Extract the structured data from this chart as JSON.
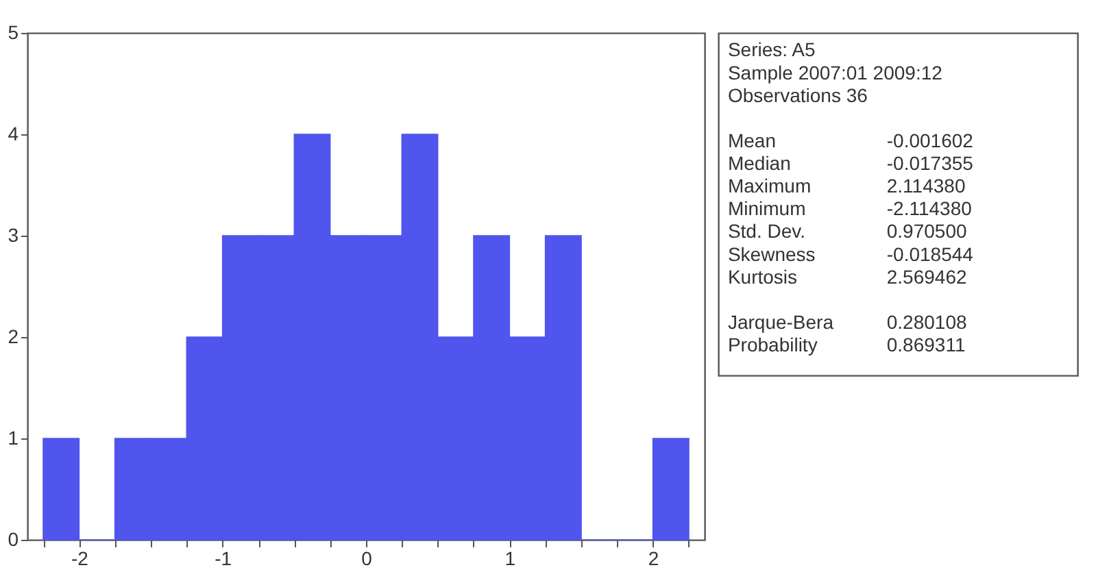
{
  "chart_data": {
    "type": "histogram",
    "color": "#5055ee",
    "bins": [
      -2.25,
      -2,
      -1.75,
      -1.5,
      -1.25,
      -1,
      -0.75,
      -0.5,
      -0.25,
      0,
      0.25,
      0.5,
      0.75,
      1,
      1.25,
      1.5,
      1.75,
      2,
      2.25
    ],
    "values": [
      1,
      0,
      1,
      1,
      2,
      3,
      3,
      4,
      3,
      3,
      4,
      2,
      3,
      2,
      3,
      0,
      0,
      1
    ],
    "xlim": [
      -2.36,
      2.36
    ],
    "xticks": [
      {
        "value": -2.25,
        "label": null
      },
      -2,
      {
        "value": -1.75,
        "label": null
      },
      {
        "value": -1.5,
        "label": null
      },
      {
        "value": -1.25,
        "label": null
      },
      -1,
      {
        "value": -0.75,
        "label": null
      },
      {
        "value": -0.5,
        "label": null
      },
      {
        "value": -0.25,
        "label": null
      },
      0,
      {
        "value": 0.25,
        "label": null
      },
      {
        "value": 0.5,
        "label": null
      },
      {
        "value": 0.75,
        "label": null
      },
      1,
      {
        "value": 1.25,
        "label": null
      },
      {
        "value": 1.5,
        "label": null
      },
      {
        "value": 1.75,
        "label": null
      },
      2,
      {
        "value": 2.25,
        "label": null
      }
    ],
    "ylim": [
      0,
      5
    ],
    "yticks": [
      0,
      1,
      2,
      3,
      4,
      5
    ],
    "grid": false,
    "annotations": [
      "Series: A5",
      "Sample 2007:01 2009:12",
      "Observations 36",
      "Mean -0.001602",
      "Median -0.017355",
      "Maximum 2.114380",
      "Minimum -2.114380",
      "Std. Dev. 0.970500",
      "Skewness -0.018544",
      "Kurtosis 2.569462",
      "Jarque-Bera 0.280108",
      "Probability 0.869311"
    ]
  }
}
